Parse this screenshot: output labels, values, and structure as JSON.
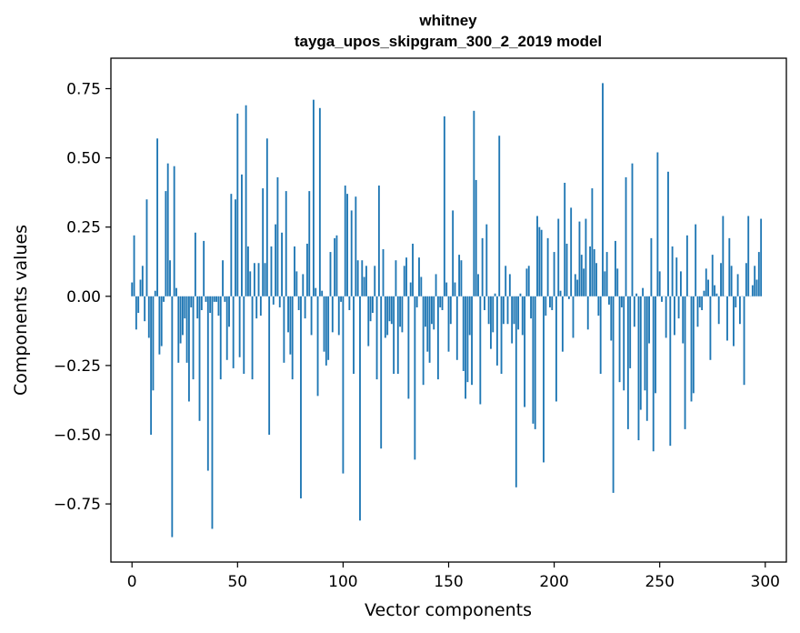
{
  "chart_data": {
    "type": "bar",
    "title": "whitney",
    "subtitle": "tayga_upos_skipgram_300_2_2019 model",
    "xlabel": "Vector components",
    "ylabel": "Components values",
    "xlim": [
      -10,
      310
    ],
    "ylim": [
      -0.96,
      0.86
    ],
    "xticks": [
      0,
      50,
      100,
      150,
      200,
      250,
      300
    ],
    "yticks": [
      -0.75,
      -0.5,
      -0.25,
      0.0,
      0.25,
      0.5,
      0.75
    ],
    "ytick_labels": [
      "−0.75",
      "−0.50",
      "−0.25",
      "0.00",
      "0.25",
      "0.50",
      "0.75"
    ],
    "bar_color": "#1f77b4",
    "grid": false,
    "values": [
      0.05,
      0.22,
      -0.12,
      -0.06,
      0.06,
      0.11,
      -0.09,
      0.35,
      -0.15,
      -0.5,
      -0.34,
      0.02,
      0.57,
      -0.21,
      -0.18,
      -0.02,
      0.38,
      0.48,
      0.13,
      -0.87,
      0.47,
      0.03,
      -0.24,
      -0.17,
      -0.14,
      -0.08,
      -0.24,
      -0.38,
      -0.04,
      -0.3,
      0.23,
      -0.08,
      -0.45,
      -0.05,
      0.2,
      -0.02,
      -0.63,
      -0.06,
      -0.84,
      -0.02,
      -0.02,
      -0.07,
      -0.3,
      0.13,
      -0.02,
      -0.23,
      -0.11,
      0.37,
      -0.26,
      0.35,
      0.66,
      -0.22,
      0.44,
      -0.28,
      0.69,
      0.18,
      0.09,
      -0.3,
      0.12,
      -0.08,
      0.12,
      -0.07,
      0.39,
      0.12,
      0.57,
      -0.5,
      0.18,
      -0.03,
      0.26,
      0.43,
      -0.04,
      0.23,
      -0.24,
      0.38,
      -0.13,
      -0.21,
      -0.3,
      0.18,
      0.09,
      -0.05,
      -0.73,
      0.08,
      -0.08,
      0.19,
      0.38,
      -0.14,
      0.71,
      0.03,
      -0.36,
      0.68,
      0.02,
      -0.2,
      -0.25,
      -0.23,
      0.16,
      -0.13,
      0.21,
      0.22,
      -0.14,
      -0.02,
      -0.64,
      0.4,
      0.37,
      -0.05,
      0.31,
      -0.28,
      0.36,
      0.13,
      -0.81,
      0.13,
      0.07,
      0.11,
      -0.18,
      -0.09,
      -0.06,
      0.11,
      -0.3,
      0.4,
      -0.55,
      0.17,
      -0.15,
      -0.14,
      -0.09,
      -0.1,
      -0.28,
      0.13,
      -0.28,
      -0.11,
      -0.13,
      0.11,
      0.14,
      -0.37,
      0.05,
      0.19,
      -0.59,
      -0.04,
      0.14,
      0.07,
      -0.32,
      -0.11,
      -0.2,
      -0.24,
      -0.1,
      -0.12,
      0.08,
      -0.3,
      -0.04,
      -0.05,
      0.65,
      0.05,
      -0.2,
      -0.1,
      0.31,
      0.05,
      -0.23,
      0.15,
      0.13,
      -0.27,
      -0.37,
      -0.31,
      -0.14,
      -0.32,
      0.67,
      0.42,
      0.08,
      -0.39,
      0.21,
      -0.05,
      0.26,
      -0.1,
      -0.19,
      -0.13,
      0.01,
      -0.25,
      0.58,
      -0.28,
      -0.1,
      0.11,
      -0.1,
      0.08,
      -0.17,
      -0.1,
      -0.69,
      -0.12,
      0.01,
      -0.14,
      -0.4,
      0.1,
      0.11,
      -0.08,
      -0.46,
      -0.48,
      0.29,
      0.25,
      0.24,
      -0.6,
      -0.07,
      0.21,
      -0.04,
      -0.05,
      0.16,
      -0.38,
      0.28,
      0.02,
      -0.2,
      0.41,
      0.19,
      -0.01,
      0.32,
      -0.15,
      0.08,
      0.06,
      0.27,
      0.15,
      0.1,
      0.28,
      -0.12,
      0.18,
      0.39,
      0.17,
      0.12,
      -0.07,
      -0.28,
      0.77,
      0.09,
      0.16,
      -0.03,
      -0.16,
      -0.71,
      0.2,
      0.1,
      -0.31,
      -0.04,
      -0.34,
      0.43,
      -0.48,
      -0.26,
      0.48,
      -0.11,
      0.01,
      -0.52,
      -0.41,
      0.03,
      -0.34,
      -0.45,
      -0.17,
      0.21,
      -0.56,
      -0.35,
      0.52,
      0.09,
      -0.02,
      0.0,
      -0.15,
      0.45,
      -0.54,
      0.18,
      -0.14,
      0.14,
      -0.08,
      0.09,
      -0.17,
      -0.48,
      0.22,
      0.0,
      -0.38,
      -0.35,
      0.26,
      -0.11,
      -0.04,
      -0.05,
      0.02,
      0.1,
      0.06,
      -0.23,
      0.15,
      0.04,
      0.01,
      -0.1,
      0.12,
      0.29,
      0.0,
      -0.16,
      0.21,
      0.11,
      -0.18,
      -0.04,
      0.08,
      -0.1,
      0.0,
      -0.32,
      0.12,
      0.29,
      0.0,
      0.04,
      0.11,
      0.06,
      0.16,
      0.28
    ]
  }
}
